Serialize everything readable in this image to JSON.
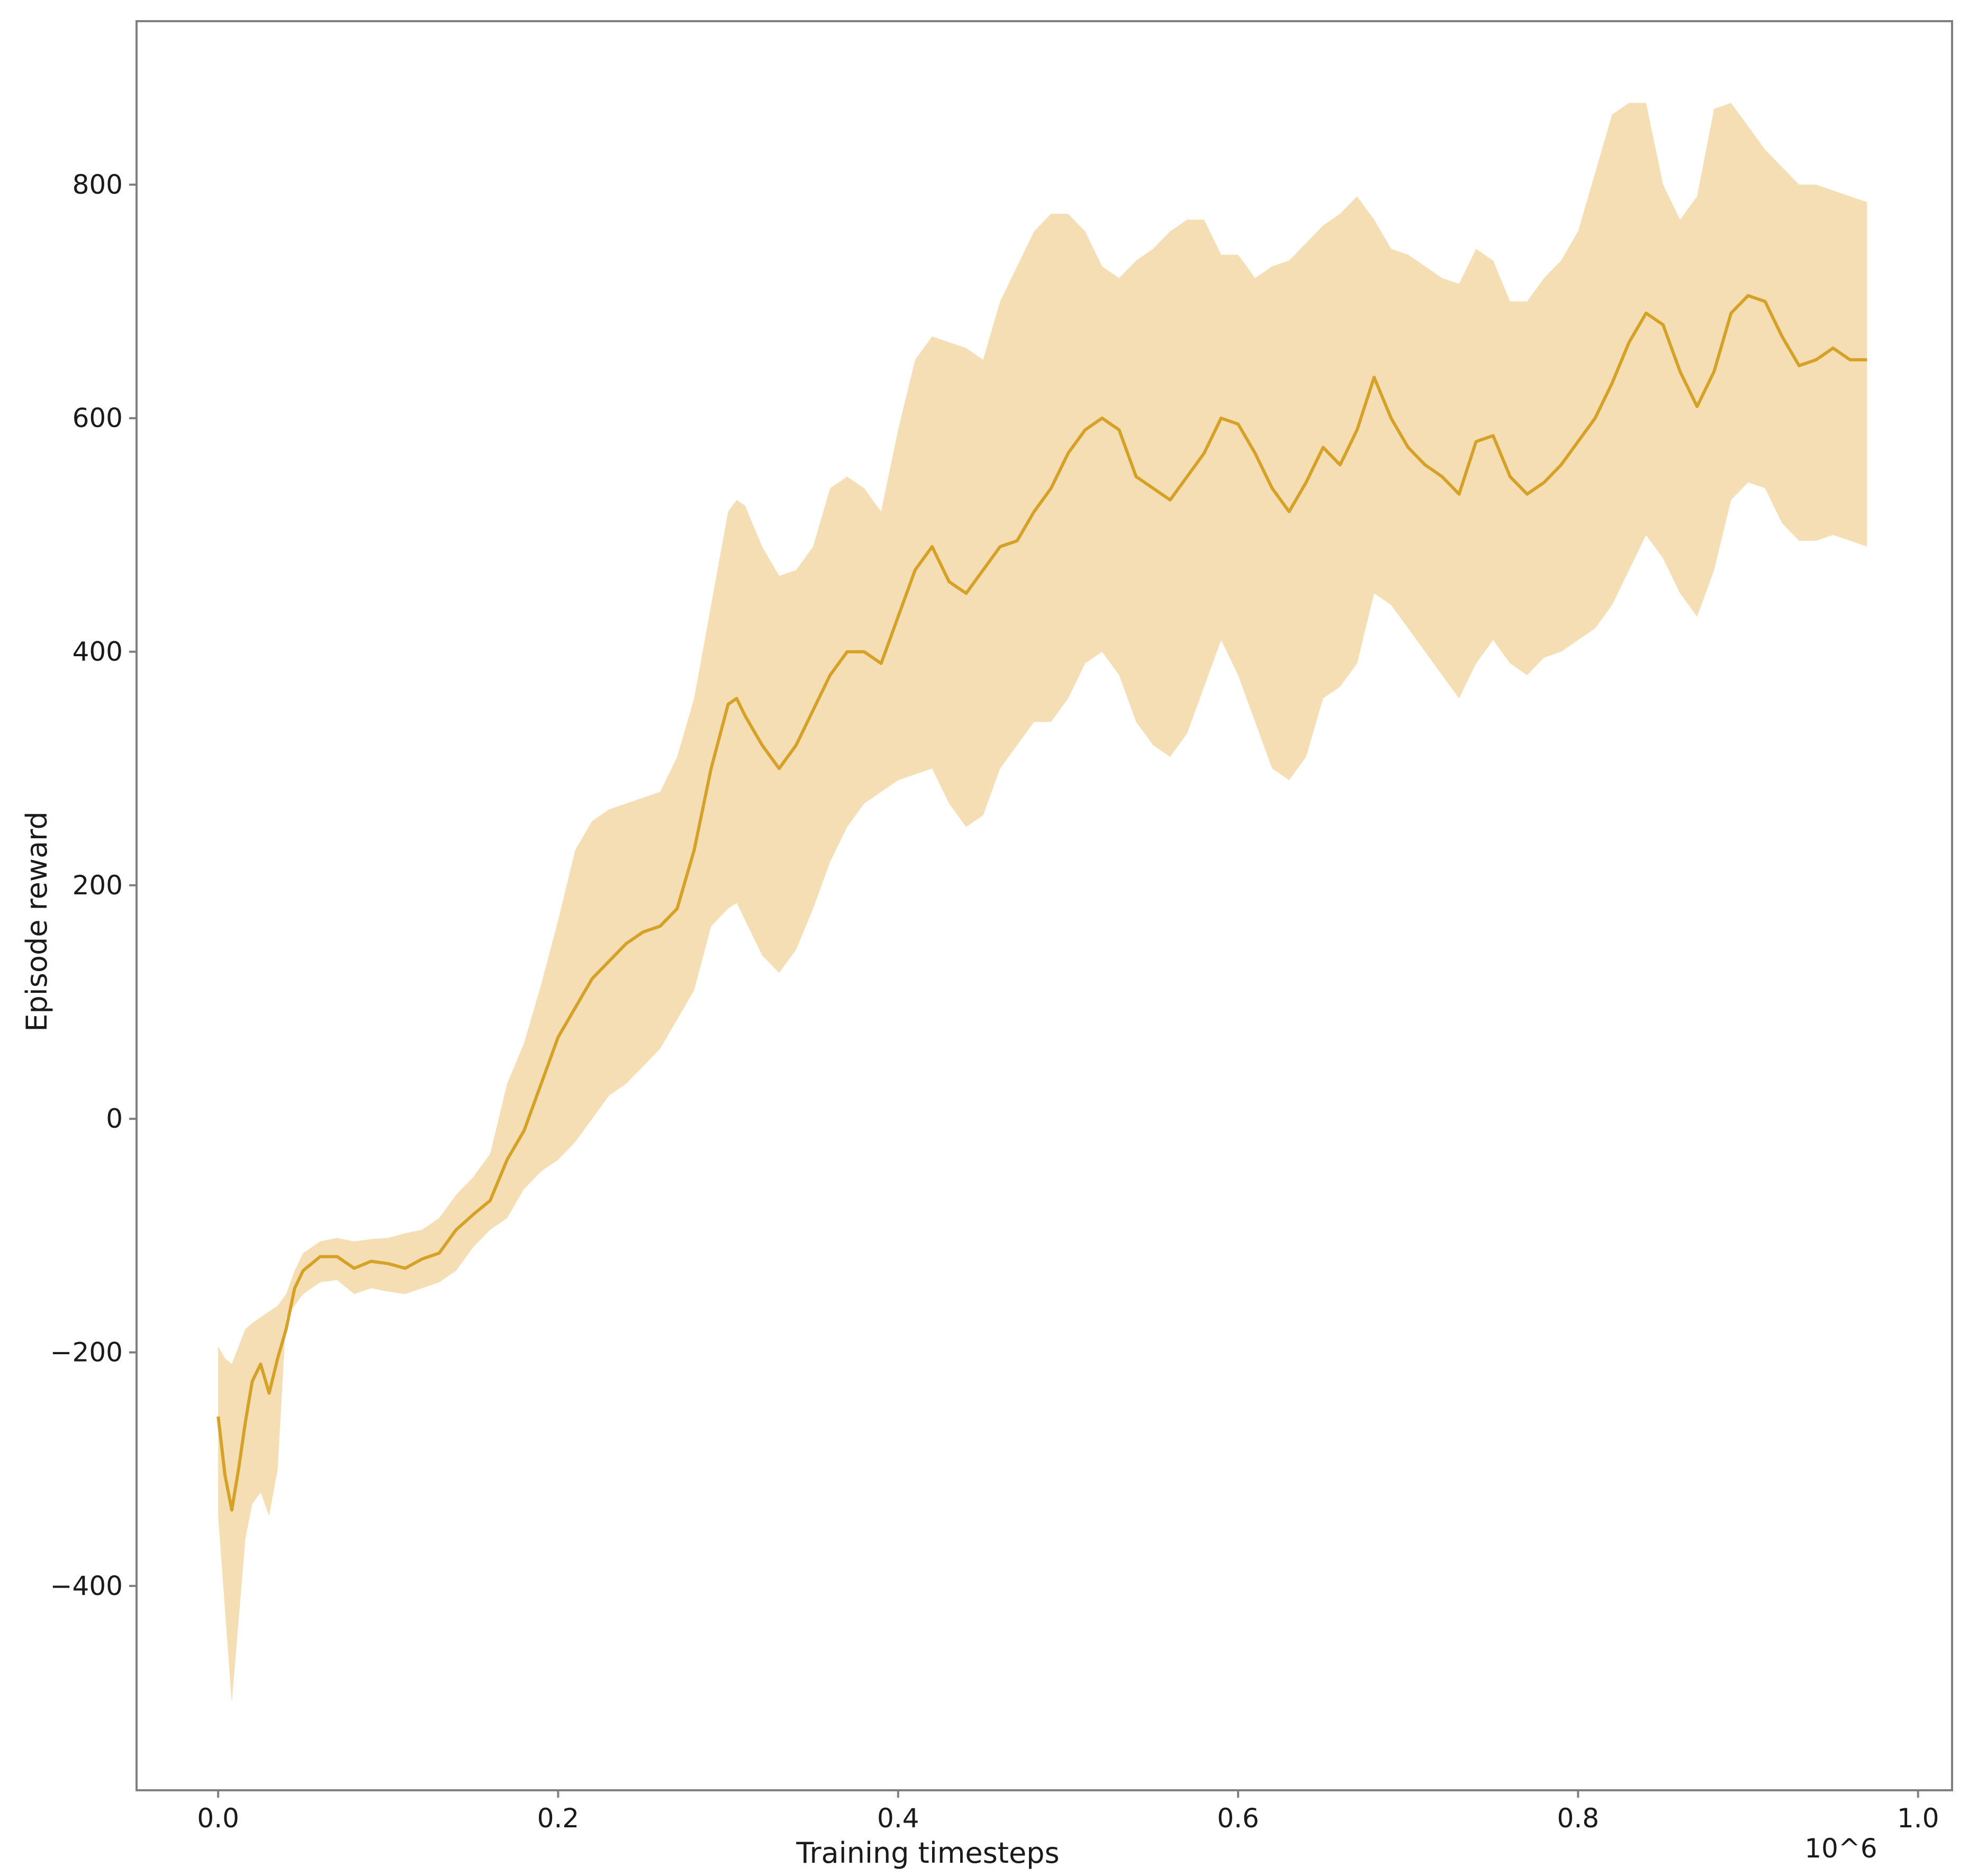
{
  "chart_data": {
    "type": "line",
    "title": "",
    "xlabel": "Training timesteps",
    "ylabel": "Episode reward",
    "x_multiplier_label": "10^6",
    "xlim": [
      -0.048,
      1.02
    ],
    "ylim": [
      -575,
      940
    ],
    "x_ticks": [
      0.0,
      0.2,
      0.4,
      0.6,
      0.8,
      1.0
    ],
    "x_tick_labels": [
      "0.0",
      "0.2",
      "0.4",
      "0.6",
      "0.8",
      "1.0"
    ],
    "y_ticks": [
      -400,
      -200,
      0,
      200,
      400,
      600,
      800
    ],
    "y_tick_labels": [
      "−400",
      "−200",
      "0",
      "200",
      "400",
      "600",
      "800"
    ],
    "grid": false,
    "legend": "none",
    "colors": {
      "mean_line": "#D6A127",
      "band_fill": "#F5DEB3",
      "axis_frame": "#7f7f7f"
    },
    "series": [
      {
        "x": [
          0.0,
          0.004,
          0.008,
          0.012,
          0.016,
          0.02,
          0.025,
          0.03,
          0.035,
          0.04,
          0.045,
          0.05,
          0.06,
          0.07,
          0.08,
          0.09,
          0.1,
          0.11,
          0.12,
          0.13,
          0.14,
          0.15,
          0.16,
          0.17,
          0.18,
          0.19,
          0.2,
          0.21,
          0.22,
          0.23,
          0.24,
          0.25,
          0.26,
          0.27,
          0.28,
          0.29,
          0.3,
          0.305,
          0.31,
          0.32,
          0.33,
          0.34,
          0.35,
          0.36,
          0.37,
          0.38,
          0.39,
          0.4,
          0.41,
          0.42,
          0.43,
          0.44,
          0.45,
          0.46,
          0.47,
          0.48,
          0.49,
          0.5,
          0.51,
          0.52,
          0.53,
          0.54,
          0.55,
          0.56,
          0.57,
          0.58,
          0.59,
          0.6,
          0.61,
          0.62,
          0.63,
          0.64,
          0.65,
          0.66,
          0.67,
          0.68,
          0.69,
          0.7,
          0.71,
          0.72,
          0.73,
          0.74,
          0.75,
          0.76,
          0.77,
          0.78,
          0.79,
          0.8,
          0.81,
          0.82,
          0.83,
          0.84,
          0.85,
          0.86,
          0.87,
          0.88,
          0.89,
          0.9,
          0.91,
          0.92,
          0.93,
          0.94,
          0.95,
          0.96,
          0.97
        ],
        "mean": [
          -255,
          -305,
          -335,
          -300,
          -260,
          -225,
          -210,
          -235,
          -205,
          -180,
          -145,
          -130,
          -118,
          -118,
          -128,
          -122,
          -124,
          -128,
          -120,
          -115,
          -95,
          -82,
          -70,
          -35,
          -10,
          30,
          70,
          95,
          120,
          135,
          150,
          160,
          165,
          180,
          230,
          300,
          355,
          360,
          345,
          320,
          300,
          320,
          350,
          380,
          400,
          400,
          390,
          430,
          470,
          490,
          460,
          450,
          470,
          490,
          495,
          520,
          540,
          570,
          590,
          600,
          590,
          550,
          540,
          530,
          550,
          570,
          600,
          595,
          570,
          540,
          520,
          545,
          575,
          560,
          590,
          635,
          600,
          575,
          560,
          550,
          535,
          580,
          585,
          550,
          535,
          545,
          560,
          580,
          600,
          630,
          665,
          690,
          680,
          640,
          610,
          640,
          690,
          705,
          700,
          670,
          645,
          650,
          660,
          650,
          650
        ],
        "upper": [
          -195,
          -205,
          -210,
          -195,
          -180,
          -175,
          -170,
          -165,
          -160,
          -150,
          -130,
          -115,
          -105,
          -102,
          -105,
          -103,
          -102,
          -98,
          -95,
          -85,
          -65,
          -50,
          -30,
          30,
          65,
          115,
          170,
          230,
          255,
          265,
          270,
          275,
          280,
          310,
          360,
          440,
          520,
          530,
          525,
          490,
          465,
          470,
          490,
          540,
          550,
          540,
          520,
          590,
          650,
          670,
          665,
          660,
          650,
          700,
          730,
          760,
          775,
          775,
          760,
          730,
          720,
          735,
          745,
          760,
          770,
          770,
          740,
          740,
          720,
          730,
          735,
          750,
          765,
          775,
          790,
          770,
          745,
          740,
          730,
          720,
          715,
          745,
          735,
          700,
          700,
          720,
          735,
          760,
          810,
          860,
          870,
          870,
          800,
          770,
          790,
          865,
          870,
          850,
          830,
          815,
          800,
          800,
          795,
          790,
          785
        ],
        "lower": [
          -340,
          -420,
          -500,
          -430,
          -360,
          -330,
          -320,
          -340,
          -300,
          -170,
          -160,
          -150,
          -140,
          -138,
          -150,
          -145,
          -148,
          -150,
          -145,
          -140,
          -130,
          -110,
          -95,
          -85,
          -60,
          -45,
          -35,
          -20,
          0,
          20,
          30,
          45,
          60,
          85,
          110,
          165,
          180,
          185,
          170,
          140,
          125,
          145,
          180,
          220,
          250,
          270,
          280,
          290,
          295,
          300,
          270,
          250,
          260,
          300,
          320,
          340,
          340,
          360,
          390,
          400,
          380,
          340,
          320,
          310,
          330,
          370,
          410,
          380,
          340,
          300,
          290,
          310,
          360,
          370,
          390,
          450,
          440,
          420,
          400,
          380,
          360,
          390,
          410,
          390,
          380,
          395,
          400,
          410,
          420,
          440,
          470,
          500,
          480,
          450,
          430,
          470,
          530,
          545,
          540,
          510,
          495,
          495,
          500,
          495,
          490
        ]
      }
    ]
  }
}
